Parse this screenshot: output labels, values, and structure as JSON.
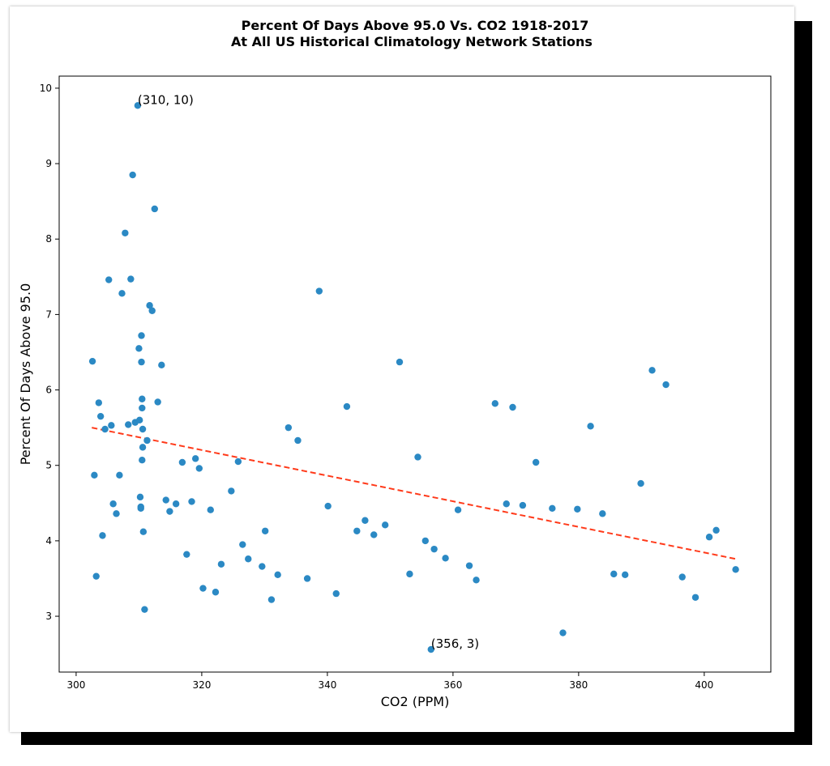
{
  "chart_data": {
    "type": "scatter",
    "title_lines": [
      "Percent Of Days Above 95.0 Vs. CO2 1918-2017",
      "At All US Historical Climatology Network Stations"
    ],
    "xlabel": "CO2 (PPM)",
    "ylabel": "Percent Of Days Above 95.0",
    "xlim": [
      297.3,
      410.6
    ],
    "ylim": [
      2.26,
      10.16
    ],
    "xticks": [
      300,
      320,
      340,
      360,
      380,
      400
    ],
    "yticks": [
      3,
      4,
      5,
      6,
      7,
      8,
      9,
      10
    ],
    "point_color": "#2b89c4",
    "trend_color": "#ff3a1a",
    "trend_line": {
      "x": [
        302.5,
        405.0
      ],
      "y": [
        5.5,
        3.76
      ]
    },
    "annotations": [
      {
        "text": "(310, 10)",
        "x": 309.8,
        "y": 9.77
      },
      {
        "text": "(356, 3)",
        "x": 356.5,
        "y": 2.56
      }
    ],
    "points": [
      [
        302.6,
        6.38
      ],
      [
        302.9,
        4.87
      ],
      [
        303.2,
        3.53
      ],
      [
        303.6,
        5.83
      ],
      [
        303.9,
        5.65
      ],
      [
        304.2,
        4.07
      ],
      [
        304.6,
        5.48
      ],
      [
        305.2,
        7.46
      ],
      [
        305.6,
        5.53
      ],
      [
        305.9,
        4.49
      ],
      [
        306.4,
        4.36
      ],
      [
        306.9,
        4.87
      ],
      [
        307.3,
        7.28
      ],
      [
        307.8,
        8.08
      ],
      [
        308.3,
        5.54
      ],
      [
        308.7,
        7.47
      ],
      [
        309.0,
        8.85
      ],
      [
        309.4,
        5.57
      ],
      [
        309.8,
        9.77
      ],
      [
        310.0,
        6.55
      ],
      [
        310.1,
        5.6
      ],
      [
        310.2,
        4.58
      ],
      [
        310.3,
        4.43
      ],
      [
        310.3,
        4.45
      ],
      [
        310.4,
        6.72
      ],
      [
        310.4,
        6.37
      ],
      [
        310.5,
        5.88
      ],
      [
        310.5,
        5.76
      ],
      [
        310.6,
        5.48
      ],
      [
        310.6,
        5.24
      ],
      [
        310.5,
        5.07
      ],
      [
        310.7,
        4.12
      ],
      [
        310.9,
        3.09
      ],
      [
        311.3,
        5.33
      ],
      [
        311.7,
        7.12
      ],
      [
        312.1,
        7.05
      ],
      [
        312.5,
        8.4
      ],
      [
        313.0,
        5.84
      ],
      [
        313.6,
        6.33
      ],
      [
        314.3,
        4.54
      ],
      [
        314.9,
        4.39
      ],
      [
        315.9,
        4.49
      ],
      [
        316.9,
        5.04
      ],
      [
        317.6,
        3.82
      ],
      [
        318.4,
        4.52
      ],
      [
        319.0,
        5.09
      ],
      [
        319.6,
        4.96
      ],
      [
        320.2,
        3.37
      ],
      [
        321.4,
        4.41
      ],
      [
        322.2,
        3.32
      ],
      [
        323.1,
        3.69
      ],
      [
        324.7,
        4.66
      ],
      [
        325.8,
        5.05
      ],
      [
        326.5,
        3.95
      ],
      [
        327.4,
        3.76
      ],
      [
        329.6,
        3.66
      ],
      [
        330.1,
        4.13
      ],
      [
        331.1,
        3.22
      ],
      [
        332.1,
        3.55
      ],
      [
        333.8,
        5.5
      ],
      [
        335.3,
        5.33
      ],
      [
        336.8,
        3.5
      ],
      [
        338.7,
        7.31
      ],
      [
        340.1,
        4.46
      ],
      [
        341.4,
        3.3
      ],
      [
        343.1,
        5.78
      ],
      [
        344.7,
        4.13
      ],
      [
        346.0,
        4.27
      ],
      [
        347.4,
        4.08
      ],
      [
        349.2,
        4.21
      ],
      [
        351.5,
        6.37
      ],
      [
        353.1,
        3.56
      ],
      [
        354.4,
        5.11
      ],
      [
        355.6,
        4.0
      ],
      [
        356.5,
        2.56
      ],
      [
        357.0,
        3.89
      ],
      [
        358.8,
        3.77
      ],
      [
        360.8,
        4.41
      ],
      [
        362.6,
        3.67
      ],
      [
        363.7,
        3.48
      ],
      [
        366.7,
        5.82
      ],
      [
        368.5,
        4.49
      ],
      [
        369.5,
        5.77
      ],
      [
        371.1,
        4.47
      ],
      [
        373.2,
        5.04
      ],
      [
        375.8,
        4.43
      ],
      [
        377.5,
        2.78
      ],
      [
        379.8,
        4.42
      ],
      [
        381.9,
        5.52
      ],
      [
        383.8,
        4.36
      ],
      [
        385.6,
        3.56
      ],
      [
        387.4,
        3.55
      ],
      [
        389.9,
        4.76
      ],
      [
        391.7,
        6.26
      ],
      [
        393.9,
        6.07
      ],
      [
        396.5,
        3.52
      ],
      [
        398.6,
        3.25
      ],
      [
        400.8,
        4.05
      ],
      [
        401.9,
        4.14
      ],
      [
        405.0,
        3.62
      ]
    ]
  }
}
